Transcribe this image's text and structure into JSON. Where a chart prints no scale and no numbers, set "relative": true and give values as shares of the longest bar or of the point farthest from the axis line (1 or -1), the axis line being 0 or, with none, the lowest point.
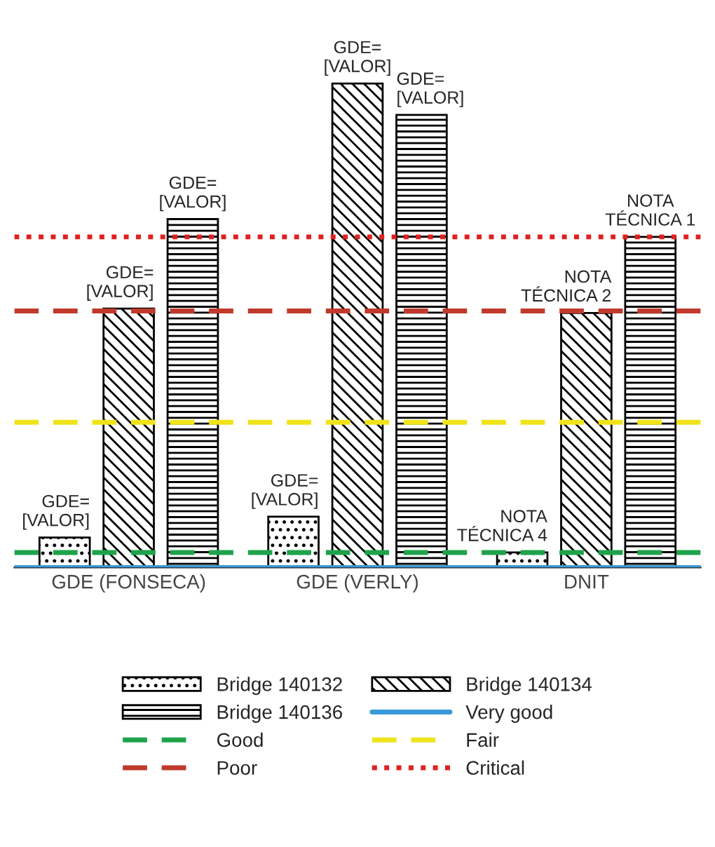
{
  "chart_data": {
    "type": "bar",
    "relative": true,
    "categories": [
      "GDE (FONSECA)",
      "GDE (VERLY)",
      "DNIT"
    ],
    "series": [
      {
        "name": "Bridge 140132",
        "color": "#000000",
        "values": [
          0.062,
          0.105,
          0.031
        ]
      },
      {
        "name": "Bridge 140134",
        "color": "#000000",
        "values": [
          0.535,
          1,
          0.526
        ]
      },
      {
        "name": "Bridge 140136",
        "color": "#000000",
        "values": [
          0.72,
          0.935,
          0.683
        ]
      }
    ],
    "ref_lines": [
      {
        "axis": "y",
        "value": 0,
        "label": "Very good",
        "color": "#3a9ad9",
        "line_style": "solid"
      },
      {
        "axis": "y",
        "value": 0.031,
        "label": "Good",
        "color": "#1fa24a",
        "line_style": "dashed"
      },
      {
        "axis": "y",
        "value": 0.3,
        "label": "Fair",
        "color": "#f0e31a",
        "line_style": "dashed"
      },
      {
        "axis": "y",
        "value": 0.53,
        "label": "Poor",
        "color": "#c0392b",
        "line_style": "dashed"
      },
      {
        "axis": "y",
        "value": 0.683,
        "label": "Critical",
        "color": "#e02020",
        "line_style": "dotted"
      }
    ],
    "annotations": [
      "GDE=\n[VALOR]",
      "GDE=\n[VALOR]",
      "GDE=\n[VALOR]",
      "GDE=\n[VALOR]",
      "GDE=\n[VALOR]",
      "GDE=\n[VALOR]",
      "NOTA\nTÉCNICA 4",
      "NOTA\nTÉCNICA 2",
      "NOTA\nTÉCNICA 1"
    ],
    "legend": "bottom"
  }
}
